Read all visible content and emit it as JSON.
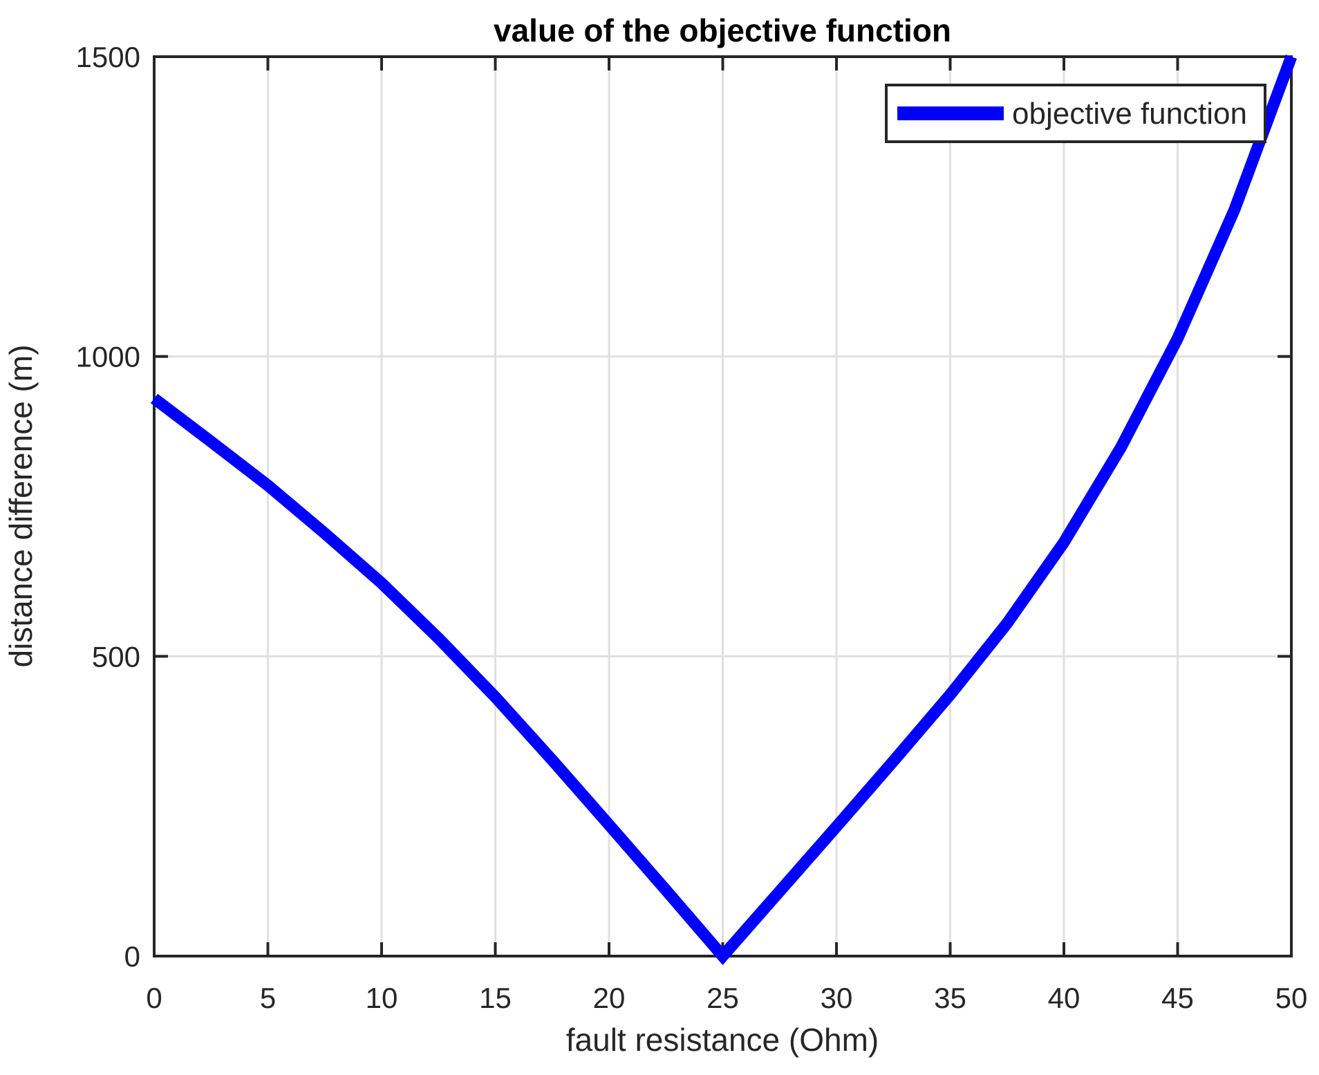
{
  "chart_data": {
    "type": "line",
    "title": "value of the objective function",
    "xlabel": "fault resistance (Ohm)",
    "ylabel": "distance difference (m)",
    "xlim": [
      0,
      50
    ],
    "ylim": [
      0,
      1500
    ],
    "xticks": [
      0,
      5,
      10,
      15,
      20,
      25,
      30,
      35,
      40,
      45,
      50
    ],
    "yticks": [
      0,
      500,
      1000,
      1500
    ],
    "grid": true,
    "legend": {
      "label": "objective function",
      "position": "top-right"
    },
    "series": [
      {
        "name": "objective function",
        "color": "#0000FF",
        "x": [
          0,
          2.5,
          5,
          7.5,
          10,
          12.5,
          15,
          17.5,
          20,
          22.5,
          25,
          27.5,
          30,
          32.5,
          35,
          37.5,
          40,
          42.5,
          45,
          47.5,
          50
        ],
        "y": [
          930,
          858,
          785,
          705,
          622,
          530,
          432,
          327,
          219,
          110,
          0,
          108,
          216,
          325,
          436,
          555,
          690,
          848,
          1030,
          1245,
          1500
        ]
      }
    ],
    "colors": {
      "accent_blue": "#0000FF",
      "grid_gray": "#e0e0e0",
      "frame_dark": "#262626"
    }
  }
}
